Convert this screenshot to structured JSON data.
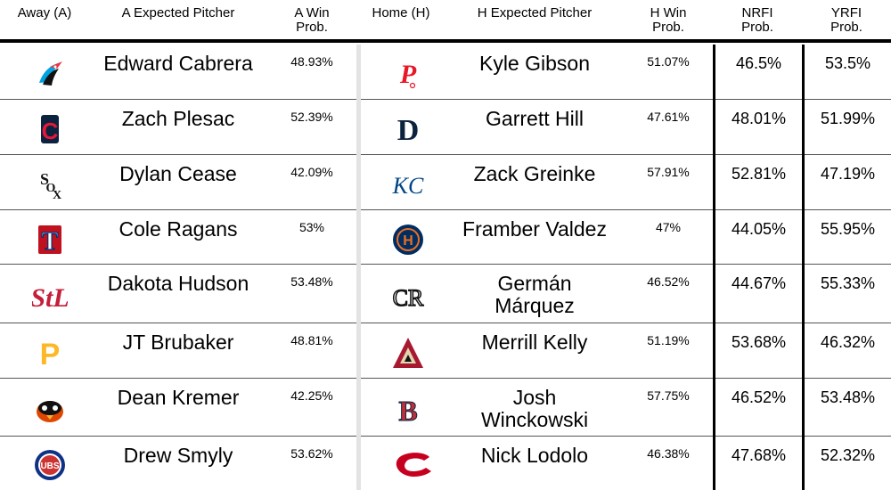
{
  "headers": {
    "away": "Away (A)",
    "away_pitcher": "A Expected Pitcher",
    "away_win_l1": "A Win",
    "away_win_l2": "Prob.",
    "home": "Home (H)",
    "home_pitcher": "H Expected Pitcher",
    "home_win_l1": "H Win",
    "home_win_l2": "Prob.",
    "nrfi_l1": "NRFI",
    "nrfi_l2": "Prob.",
    "yrfi_l1": "YRFI",
    "yrfi_l2": "Prob."
  },
  "rows": [
    {
      "away_logo": "marlins-logo-icon",
      "away_pitcher_l1": "Edward Cabrera",
      "away_pitcher_l2": "",
      "away_win": "48.93%",
      "home_logo": "phillies-logo-icon",
      "home_pitcher_l1": "Kyle Gibson",
      "home_pitcher_l2": "",
      "home_win": "51.07%",
      "nrfi": "46.5%",
      "yrfi": "53.5%"
    },
    {
      "away_logo": "guardians-logo-icon",
      "away_pitcher_l1": "Zach Plesac",
      "away_pitcher_l2": "",
      "away_win": "52.39%",
      "home_logo": "tigers-logo-icon",
      "home_pitcher_l1": "Garrett Hill",
      "home_pitcher_l2": "",
      "home_win": "47.61%",
      "nrfi": "48.01%",
      "yrfi": "51.99%"
    },
    {
      "away_logo": "white-sox-logo-icon",
      "away_pitcher_l1": "Dylan Cease",
      "away_pitcher_l2": "",
      "away_win": "42.09%",
      "home_logo": "royals-logo-icon",
      "home_pitcher_l1": "Zack Greinke",
      "home_pitcher_l2": "",
      "home_win": "57.91%",
      "nrfi": "52.81%",
      "yrfi": "47.19%"
    },
    {
      "away_logo": "rangers-logo-icon",
      "away_pitcher_l1": "Cole Ragans",
      "away_pitcher_l2": "",
      "away_win": "53%",
      "home_logo": "astros-logo-icon",
      "home_pitcher_l1": "Framber Valdez",
      "home_pitcher_l2": "",
      "home_win": "47%",
      "nrfi": "44.05%",
      "yrfi": "55.95%"
    },
    {
      "away_logo": "cardinals-logo-icon",
      "away_pitcher_l1": "Dakota Hudson",
      "away_pitcher_l2": "",
      "away_win": "53.48%",
      "home_logo": "rockies-logo-icon",
      "home_pitcher_l1": "Germán",
      "home_pitcher_l2": "Márquez",
      "home_win": "46.52%",
      "nrfi": "44.67%",
      "yrfi": "55.33%"
    },
    {
      "away_logo": "pirates-logo-icon",
      "away_pitcher_l1": "JT Brubaker",
      "away_pitcher_l2": "",
      "away_win": "48.81%",
      "home_logo": "diamondbacks-logo-icon",
      "home_pitcher_l1": "Merrill Kelly",
      "home_pitcher_l2": "",
      "home_win": "51.19%",
      "nrfi": "53.68%",
      "yrfi": "46.32%"
    },
    {
      "away_logo": "orioles-logo-icon",
      "away_pitcher_l1": "Dean Kremer",
      "away_pitcher_l2": "",
      "away_win": "42.25%",
      "home_logo": "red-sox-logo-icon",
      "home_pitcher_l1": "Josh",
      "home_pitcher_l2": "Winckowski",
      "home_win": "57.75%",
      "nrfi": "46.52%",
      "yrfi": "53.48%"
    },
    {
      "away_logo": "cubs-logo-icon",
      "away_pitcher_l1": "Drew Smyly",
      "away_pitcher_l2": "",
      "away_win": "53.62%",
      "home_logo": "reds-logo-icon",
      "home_pitcher_l1": "Nick Lodolo",
      "home_pitcher_l2": "",
      "home_win": "46.38%",
      "nrfi": "47.68%",
      "yrfi": "52.32%"
    }
  ]
}
